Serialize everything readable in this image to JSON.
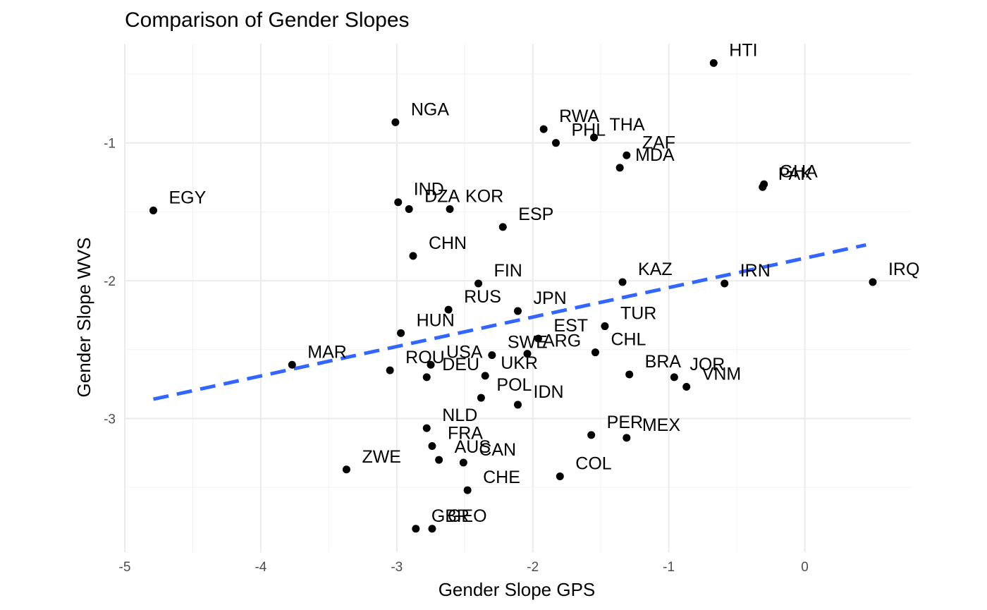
{
  "chart_data": {
    "type": "scatter",
    "title": "Comparison of Gender Slopes",
    "xlabel": "Gender Slope GPS",
    "ylabel": "Gender Slope WVS",
    "xlim": [
      -5,
      0.78
    ],
    "ylim": [
      -3.97,
      -0.28
    ],
    "x_ticks": [
      -5,
      -4,
      -3,
      -2,
      -1,
      0
    ],
    "y_ticks": [
      -1,
      -2,
      -3
    ],
    "grid": true,
    "colors": {
      "points": "#000000",
      "fit_line": "#3366FF"
    },
    "fit_line": {
      "x": [
        -4.79,
        0.45
      ],
      "y": [
        -2.86,
        -1.74
      ],
      "style": "dashed"
    },
    "points": [
      {
        "label": "HTI",
        "x": -0.67,
        "y": -0.42
      },
      {
        "label": "NGA",
        "x": -3.01,
        "y": -0.85
      },
      {
        "label": "RWA",
        "x": -1.92,
        "y": -0.9
      },
      {
        "label": "PHL",
        "x": -1.83,
        "y": -1.0
      },
      {
        "label": "THA",
        "x": -1.55,
        "y": -0.96
      },
      {
        "label": "ZAF",
        "x": -1.31,
        "y": -1.09
      },
      {
        "label": "MDA",
        "x": -1.36,
        "y": -1.18
      },
      {
        "label": "GHA",
        "x": -0.3,
        "y": -1.3
      },
      {
        "label": "PAK",
        "x": -0.31,
        "y": -1.32
      },
      {
        "label": "EGY",
        "x": -4.79,
        "y": -1.49
      },
      {
        "label": "IND",
        "x": -2.99,
        "y": -1.43
      },
      {
        "label": "DZA",
        "x": -2.91,
        "y": -1.48
      },
      {
        "label": "KOR",
        "x": -2.61,
        "y": -1.48
      },
      {
        "label": "ESP",
        "x": -2.22,
        "y": -1.61
      },
      {
        "label": "CHN",
        "x": -2.88,
        "y": -1.82
      },
      {
        "label": "FIN",
        "x": -2.4,
        "y": -2.02
      },
      {
        "label": "KAZ",
        "x": -1.34,
        "y": -2.01
      },
      {
        "label": "IRN",
        "x": -0.59,
        "y": -2.02
      },
      {
        "label": "IRQ",
        "x": 0.5,
        "y": -2.01
      },
      {
        "label": "RUS",
        "x": -2.62,
        "y": -2.21
      },
      {
        "label": "JPN",
        "x": -2.11,
        "y": -2.22
      },
      {
        "label": "HUN",
        "x": -2.97,
        "y": -2.38
      },
      {
        "label": "TUR",
        "x": -1.47,
        "y": -2.33
      },
      {
        "label": "EST",
        "x": -1.96,
        "y": -2.42
      },
      {
        "label": "ARG",
        "x": -2.04,
        "y": -2.53
      },
      {
        "label": "CHL",
        "x": -1.54,
        "y": -2.52
      },
      {
        "label": "BRA",
        "x": -1.29,
        "y": -2.68
      },
      {
        "label": "MAR",
        "x": -3.77,
        "y": -2.61
      },
      {
        "label": "SWE",
        "x": -2.3,
        "y": -2.54
      },
      {
        "label": "USA",
        "x": -2.75,
        "y": -2.61
      },
      {
        "label": "UKR",
        "x": -2.35,
        "y": -2.69
      },
      {
        "label": "ROU",
        "x": -3.05,
        "y": -2.65
      },
      {
        "label": "POL",
        "x": -2.38,
        "y": -2.85
      },
      {
        "label": "IDN",
        "x": -2.11,
        "y": -2.9
      },
      {
        "label": "JOR",
        "x": -0.96,
        "y": -2.7
      },
      {
        "label": "VNM",
        "x": -0.87,
        "y": -2.77
      },
      {
        "label": "DEU",
        "x": -2.78,
        "y": -2.7
      },
      {
        "label": "NLD",
        "x": -2.78,
        "y": -3.07
      },
      {
        "label": "FRA",
        "x": -2.74,
        "y": -3.2
      },
      {
        "label": "AUS",
        "x": -2.69,
        "y": -3.3
      },
      {
        "label": "CAN",
        "x": -2.51,
        "y": -3.32
      },
      {
        "label": "PER",
        "x": -1.57,
        "y": -3.12
      },
      {
        "label": "MEX",
        "x": -1.31,
        "y": -3.14
      },
      {
        "label": "ZWE",
        "x": -3.37,
        "y": -3.37
      },
      {
        "label": "COL",
        "x": -1.8,
        "y": -3.42
      },
      {
        "label": "CHE",
        "x": -2.48,
        "y": -3.52
      },
      {
        "label": "GBR",
        "x": -2.86,
        "y": -3.8
      },
      {
        "label": "GEO",
        "x": -2.74,
        "y": -3.8
      }
    ]
  }
}
